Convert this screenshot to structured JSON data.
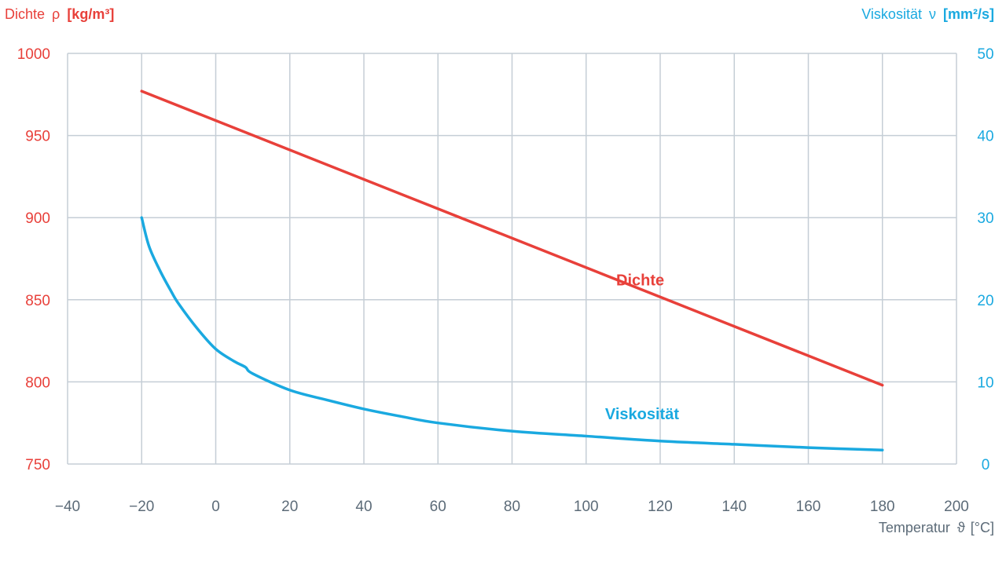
{
  "chart_data": {
    "type": "line",
    "x_axis": {
      "label": "Temperatur",
      "symbol": "ϑ",
      "unit": "[°C]",
      "range": [
        -40,
        200
      ],
      "ticks": [
        -40,
        -20,
        0,
        20,
        40,
        60,
        80,
        100,
        120,
        140,
        160,
        180,
        200
      ],
      "tick_labels": [
        "−40",
        "−20",
        "0",
        "20",
        "40",
        "60",
        "80",
        "100",
        "120",
        "140",
        "160",
        "180",
        "200"
      ]
    },
    "y_left": {
      "label": "Dichte",
      "symbol": "ρ",
      "unit": "[kg/m³]",
      "range": [
        750,
        1000
      ],
      "ticks": [
        750,
        800,
        850,
        900,
        950,
        1000
      ],
      "color": "#e8403a"
    },
    "y_right": {
      "label": "Viskosität",
      "symbol": "ν",
      "unit": "[mm²/s]",
      "range": [
        0,
        50
      ],
      "ticks": [
        0,
        10,
        20,
        30,
        40,
        50
      ],
      "color": "#1aa9e0"
    },
    "grid": true,
    "grid_color": "#c5ced6",
    "tick_color": "#5c6b78",
    "series": [
      {
        "name": "Dichte",
        "axis": "left",
        "color": "#e8403a",
        "x": [
          -20,
          180
        ],
        "y": [
          977,
          798
        ]
      },
      {
        "name": "Viskosität",
        "axis": "right",
        "color": "#1aa9e0",
        "x": [
          -20,
          -18,
          -15,
          -12,
          -10,
          -5,
          0,
          5,
          8,
          10,
          20,
          30,
          40,
          50,
          60,
          80,
          100,
          120,
          140,
          160,
          180
        ],
        "y": [
          30,
          26.5,
          23.5,
          21,
          19.5,
          16.5,
          14,
          12.5,
          11.8,
          11,
          9,
          7.8,
          6.7,
          5.8,
          5,
          4,
          3.4,
          2.8,
          2.4,
          2,
          1.7
        ]
      }
    ],
    "series_labels": [
      {
        "text": "Dichte",
        "x": 106,
        "y": 862
      },
      {
        "text": "Viskosität",
        "x": 103,
        "y": 6.1
      }
    ]
  }
}
